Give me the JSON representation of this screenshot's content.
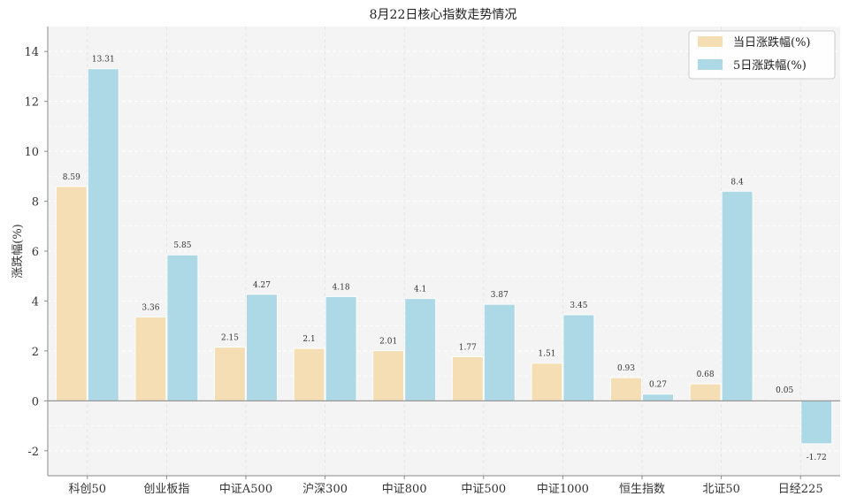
{
  "chart_data": {
    "type": "bar",
    "title": "8月22日核心指数走势情况",
    "xlabel": "",
    "ylabel": "涨跌幅(%)",
    "ylim": [
      -3,
      15
    ],
    "yticks": [
      -2,
      0,
      2,
      4,
      6,
      8,
      10,
      12,
      14
    ],
    "grid": true,
    "legend_position": "top-right",
    "categories": [
      "科创50",
      "创业板指",
      "中证A500",
      "沪深300",
      "中证800",
      "中证500",
      "中证1000",
      "恒生指数",
      "北证50",
      "日经225"
    ],
    "series": [
      {
        "name": "当日涨跌幅(%)",
        "color": "#f5deb3",
        "values": [
          8.59,
          3.36,
          2.15,
          2.1,
          2.01,
          1.77,
          1.51,
          0.93,
          0.68,
          0.05
        ],
        "labels": [
          "8.59",
          "3.36",
          "2.15",
          "2.1",
          "2.01",
          "1.77",
          "1.51",
          "0.93",
          "0.68",
          "0.05"
        ]
      },
      {
        "name": "5日涨跌幅(%)",
        "color": "#add8e6",
        "values": [
          13.31,
          5.85,
          4.27,
          4.18,
          4.1,
          3.87,
          3.45,
          0.27,
          8.4,
          -1.72
        ],
        "labels": [
          "13.31",
          "5.85",
          "4.27",
          "4.18",
          "4.1",
          "3.87",
          "3.45",
          "0.27",
          "8.4",
          "-1.72"
        ]
      }
    ]
  }
}
